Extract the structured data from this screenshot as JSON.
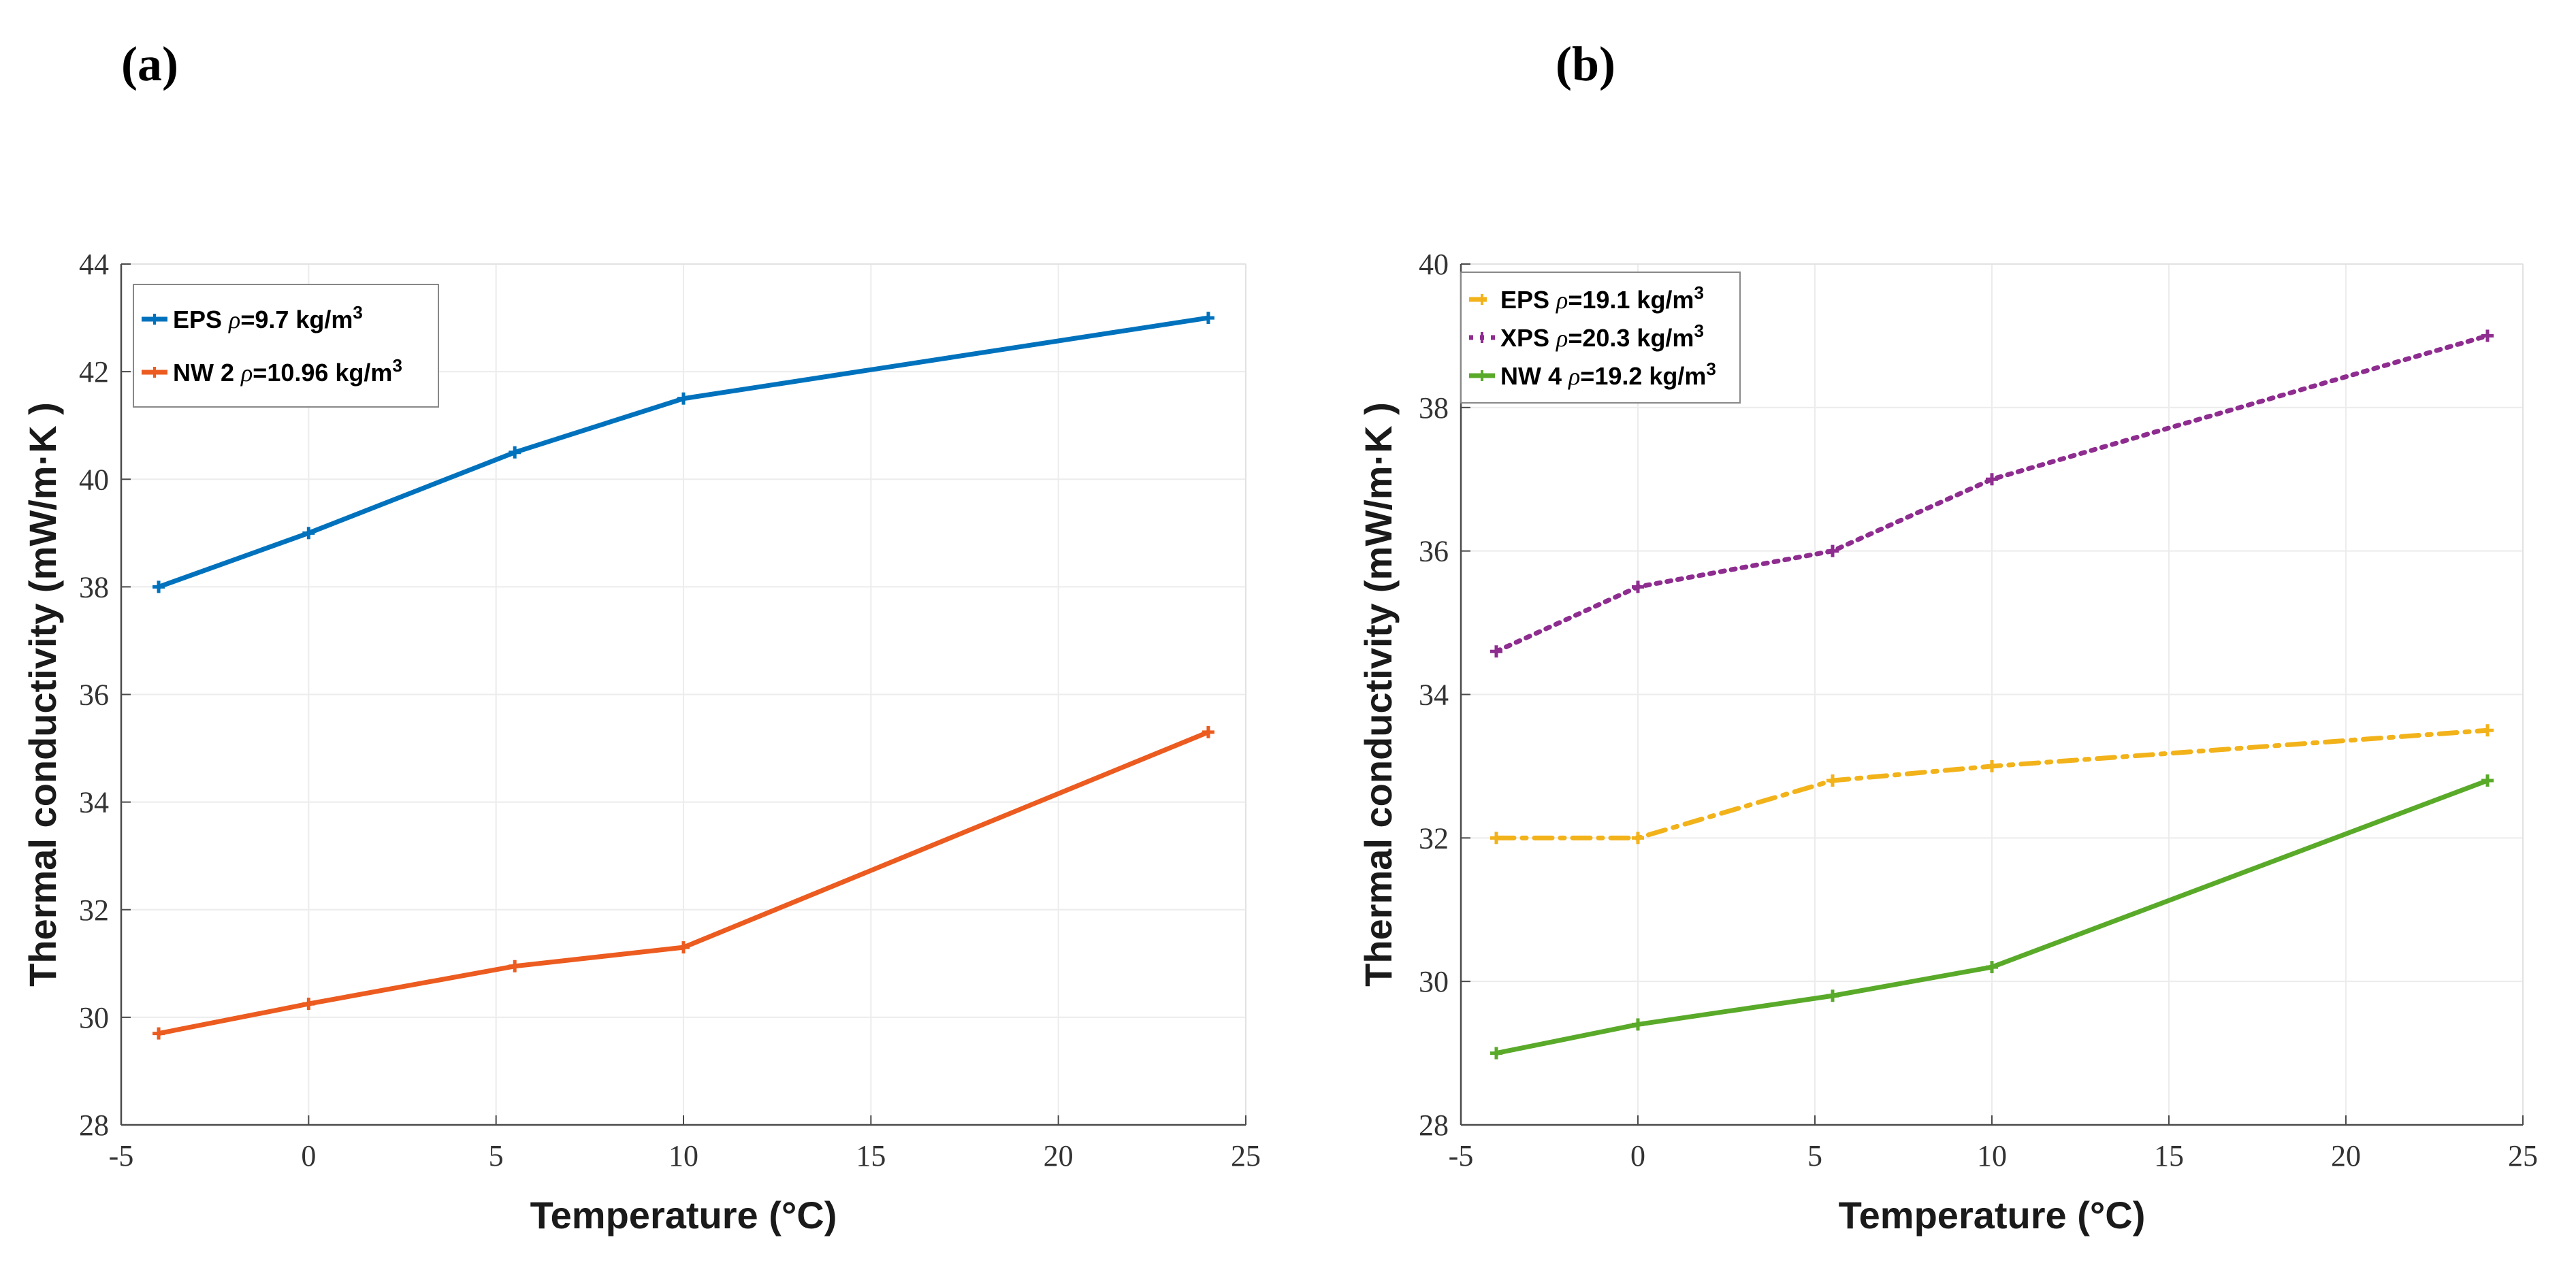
{
  "panels": [
    {
      "label": "(a)",
      "chart_data": {
        "type": "line",
        "xlabel": "Temperature (°C)",
        "ylabel": "Thermal conductivity (mW/m·K )",
        "xlim": [
          -5,
          25
        ],
        "ylim": [
          28,
          44
        ],
        "xticks": [
          -5,
          0,
          5,
          10,
          15,
          20,
          25
        ],
        "yticks": [
          28,
          30,
          32,
          34,
          36,
          38,
          40,
          42,
          44
        ],
        "grid": true,
        "legend_position": "top-left",
        "series": [
          {
            "name": "EPS",
            "density_label": "ρ=9.7 kg/m",
            "unit_sup": "3",
            "color": "#0072BD",
            "style": "solid",
            "marker": "plus",
            "x": [
              -4,
              0,
              5.5,
              10,
              24
            ],
            "y": [
              38.0,
              39.0,
              40.5,
              41.5,
              43.0
            ]
          },
          {
            "name": "NW 2",
            "density_label": "ρ=10.96 kg/m",
            "unit_sup": "3",
            "color": "#EC5B1F",
            "style": "solid",
            "marker": "plus",
            "x": [
              -4,
              0,
              5.5,
              10,
              24
            ],
            "y": [
              29.7,
              30.25,
              30.95,
              31.3,
              35.3
            ]
          }
        ]
      }
    },
    {
      "label": "(b)",
      "chart_data": {
        "type": "line",
        "xlabel": "Temperature (°C)",
        "ylabel": "Thermal conductivity (mW/m·K )",
        "xlim": [
          -5,
          25
        ],
        "ylim": [
          28,
          40
        ],
        "xticks": [
          -5,
          0,
          5,
          10,
          15,
          20,
          25
        ],
        "yticks": [
          28,
          30,
          32,
          34,
          36,
          38,
          40
        ],
        "grid": true,
        "legend_position": "top-left",
        "series": [
          {
            "name": "EPS",
            "density_label": "ρ=19.1 kg/m",
            "unit_sup": "3",
            "color": "#F2B21A",
            "style": "dashdot",
            "marker": "plus",
            "x": [
              -4,
              0,
              5.5,
              10,
              24
            ],
            "y": [
              32.0,
              32.0,
              32.8,
              33.0,
              33.5
            ]
          },
          {
            "name": "XPS",
            "density_label": "ρ=20.3 kg/m",
            "unit_sup": "3",
            "color": "#8E2C8F",
            "style": "dotted",
            "marker": "plus",
            "x": [
              -4,
              0,
              5.5,
              10,
              24
            ],
            "y": [
              34.6,
              35.5,
              36.0,
              37.0,
              39.0
            ]
          },
          {
            "name": "NW 4",
            "density_label": "ρ=19.2 kg/m",
            "unit_sup": "3",
            "color": "#5AAA2A",
            "style": "solid",
            "marker": "plus",
            "x": [
              -4,
              0,
              5.5,
              10,
              24
            ],
            "y": [
              29.0,
              29.4,
              29.8,
              30.2,
              32.8
            ]
          }
        ]
      }
    }
  ]
}
